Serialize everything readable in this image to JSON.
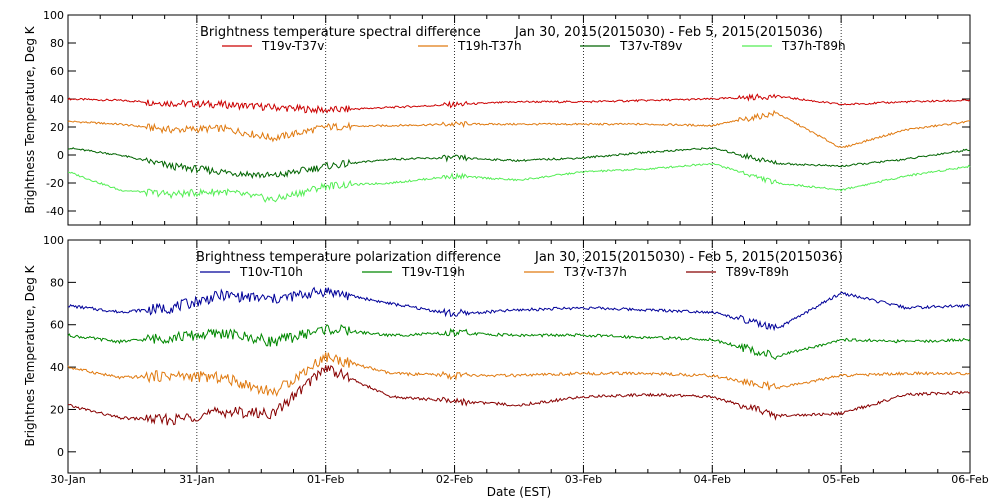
{
  "chart_data": [
    {
      "type": "line",
      "title": "Brightness temperature spectral difference",
      "date_range": "Jan 30, 2015(2015030) - Feb  5, 2015(2015036)",
      "ylabel": "Brightness Temperature, Deg K",
      "xlabel": "",
      "ylim": [
        -50,
        100
      ],
      "yticks": [
        "-40",
        "-20",
        "0",
        "20",
        "40",
        "60",
        "80",
        "100"
      ],
      "ytick_values": [
        -40,
        -20,
        0,
        20,
        40,
        60,
        80,
        100
      ],
      "xlim_days": [
        0,
        7
      ],
      "grid": "dotted vertical lines at day boundaries",
      "legend_position": "top",
      "series": [
        {
          "name": "T19v-T37v",
          "color": "#cc0000",
          "x_days": [
            0,
            0.4,
            0.8,
            1.2,
            1.6,
            2.0,
            2.5,
            3.0,
            3.5,
            4.0,
            4.5,
            5.0,
            5.5,
            6.0,
            6.5,
            7.0
          ],
          "values": [
            40,
            39,
            37,
            36,
            34,
            32,
            34,
            36,
            38,
            38,
            39,
            40,
            42,
            36,
            38,
            39
          ]
        },
        {
          "name": "T19h-T37h",
          "color": "#e07a10",
          "x_days": [
            0,
            0.4,
            0.8,
            1.2,
            1.6,
            2.0,
            2.5,
            3.0,
            3.5,
            4.0,
            4.5,
            5.0,
            5.5,
            6.0,
            6.5,
            7.0
          ],
          "values": [
            24,
            22,
            18,
            19,
            12,
            20,
            21,
            22,
            22,
            22,
            22,
            21,
            30,
            5,
            18,
            24
          ]
        },
        {
          "name": "T37v-T89v",
          "color": "#006400",
          "x_days": [
            0,
            0.4,
            0.8,
            1.2,
            1.6,
            2.0,
            2.5,
            3.0,
            3.5,
            4.0,
            4.5,
            5.0,
            5.5,
            6.0,
            6.5,
            7.0
          ],
          "values": [
            5,
            0,
            -8,
            -12,
            -15,
            -8,
            -3,
            -2,
            -4,
            -2,
            2,
            5,
            -6,
            -8,
            -3,
            4
          ]
        },
        {
          "name": "T37h-T89h",
          "color": "#55ee55",
          "x_days": [
            0,
            0.4,
            0.8,
            1.2,
            1.6,
            2.0,
            2.5,
            3.0,
            3.5,
            4.0,
            4.5,
            5.0,
            5.5,
            6.0,
            6.5,
            7.0
          ],
          "values": [
            -12,
            -25,
            -28,
            -26,
            -32,
            -22,
            -20,
            -15,
            -18,
            -12,
            -10,
            -6,
            -20,
            -25,
            -15,
            -8
          ]
        }
      ]
    },
    {
      "type": "line",
      "title": "Brightness temperature polarization difference",
      "date_range": "Jan 30, 2015(2015030) - Feb  5, 2015(2015036)",
      "ylabel": "Brightnes Temperature, Deg K",
      "xlabel": "Date (EST)",
      "ylim": [
        -10,
        100
      ],
      "yticks": [
        "0",
        "20",
        "40",
        "60",
        "80",
        "100"
      ],
      "ytick_values": [
        0,
        20,
        40,
        60,
        80,
        100
      ],
      "xlim_days": [
        0,
        7
      ],
      "xticks": [
        "30-Jan",
        "31-Jan",
        "01-Feb",
        "02-Feb",
        "03-Feb",
        "04-Feb",
        "05-Feb",
        "06-Feb"
      ],
      "grid": "dotted vertical lines at day boundaries",
      "legend_position": "top",
      "series": [
        {
          "name": "T10v-T10h",
          "color": "#000099",
          "x_days": [
            0,
            0.4,
            0.8,
            1.2,
            1.6,
            2.0,
            2.5,
            3.0,
            3.5,
            4.0,
            4.5,
            5.0,
            5.5,
            6.0,
            6.5,
            7.0
          ],
          "values": [
            69,
            66,
            68,
            74,
            72,
            76,
            70,
            65,
            67,
            68,
            67,
            66,
            58,
            75,
            68,
            69
          ]
        },
        {
          "name": "T19v-T19h",
          "color": "#008800",
          "x_days": [
            0,
            0.4,
            0.8,
            1.2,
            1.6,
            2.0,
            2.5,
            3.0,
            3.5,
            4.0,
            4.5,
            5.0,
            5.5,
            6.0,
            6.5,
            7.0
          ],
          "values": [
            55,
            52,
            54,
            56,
            52,
            58,
            55,
            56,
            55,
            55,
            54,
            53,
            45,
            53,
            52,
            53
          ]
        },
        {
          "name": "T37v-T37h",
          "color": "#e07a10",
          "x_days": [
            0,
            0.4,
            0.8,
            1.2,
            1.6,
            2.0,
            2.5,
            3.0,
            3.5,
            4.0,
            4.5,
            5.0,
            5.5,
            6.0,
            6.5,
            7.0
          ],
          "values": [
            40,
            35,
            36,
            35,
            28,
            45,
            37,
            36,
            36,
            37,
            37,
            36,
            30,
            36,
            37,
            37
          ]
        },
        {
          "name": "T89v-T89h",
          "color": "#880000",
          "x_days": [
            0,
            0.4,
            0.8,
            1.2,
            1.6,
            2.0,
            2.5,
            3.0,
            3.5,
            4.0,
            4.5,
            5.0,
            5.5,
            6.0,
            6.5,
            7.0
          ],
          "values": [
            22,
            16,
            15,
            19,
            18,
            40,
            26,
            24,
            22,
            26,
            27,
            26,
            17,
            18,
            27,
            28
          ]
        }
      ]
    }
  ]
}
